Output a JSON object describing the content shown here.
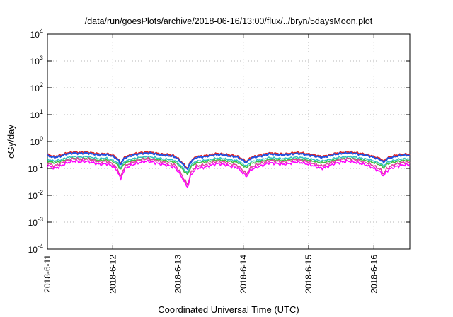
{
  "chart_data": {
    "type": "line",
    "title": "/data/run/goesPlots/archive/2018-06-16/13:00/flux/../bryn/5daysMoon.plot",
    "xlabel": "Coordinated Universal Time (UTC)",
    "ylabel": "cGy/day",
    "yscale": "log",
    "ylim": [
      0.0001,
      10000
    ],
    "xlim_days": [
      0,
      5.55
    ],
    "x_ticks": [
      {
        "label": "2018-6-11",
        "day": 0
      },
      {
        "label": "2018-6-12",
        "day": 1
      },
      {
        "label": "2018-6-13",
        "day": 2
      },
      {
        "label": "2018-6-14",
        "day": 3
      },
      {
        "label": "2018-6-15",
        "day": 4
      },
      {
        "label": "2018-6-16",
        "day": 5
      }
    ],
    "y_ticks": [
      {
        "base": "10",
        "exp": "-4",
        "value": 0.0001
      },
      {
        "base": "10",
        "exp": "-3",
        "value": 0.001
      },
      {
        "base": "10",
        "exp": "-2",
        "value": 0.01
      },
      {
        "base": "10",
        "exp": "-1",
        "value": 0.1
      },
      {
        "base": "10",
        "exp": "0",
        "value": 1
      },
      {
        "base": "10",
        "exp": "1",
        "value": 10
      },
      {
        "base": "10",
        "exp": "2",
        "value": 100
      },
      {
        "base": "10",
        "exp": "3",
        "value": 1000
      },
      {
        "base": "10",
        "exp": "4",
        "value": 10000
      }
    ],
    "grid": true,
    "legend": "none",
    "series": [
      {
        "color": "#e02020",
        "baseline": 0.33
      },
      {
        "color": "#2050e0",
        "baseline": 0.3
      },
      {
        "color": "#30c0c0",
        "baseline": 0.22
      },
      {
        "color": "#40c040",
        "baseline": 0.19
      },
      {
        "color": "#e040a0",
        "baseline": 0.16
      },
      {
        "color": "#ff00ff",
        "baseline": 0.13
      }
    ],
    "profile": {
      "x": [
        0.0,
        0.1,
        0.2,
        0.3,
        0.4,
        0.5,
        0.6,
        0.7,
        0.8,
        0.9,
        1.0,
        1.08,
        1.12,
        1.18,
        1.25,
        1.35,
        1.45,
        1.55,
        1.65,
        1.75,
        1.85,
        1.95,
        2.05,
        2.1,
        2.15,
        2.2,
        2.28,
        2.4,
        2.5,
        2.6,
        2.7,
        2.8,
        2.9,
        3.0,
        3.05,
        3.12,
        3.2,
        3.3,
        3.4,
        3.5,
        3.6,
        3.7,
        3.8,
        3.9,
        4.0,
        4.1,
        4.2,
        4.3,
        4.4,
        4.5,
        4.6,
        4.7,
        4.8,
        4.9,
        5.0,
        5.1,
        5.15,
        5.2,
        5.3,
        5.4,
        5.5,
        5.55
      ],
      "factor": [
        1.0,
        0.85,
        0.95,
        1.15,
        1.25,
        1.2,
        1.25,
        1.15,
        1.05,
        1.1,
        0.95,
        0.7,
        0.45,
        0.8,
        0.95,
        1.1,
        1.2,
        1.25,
        1.15,
        1.05,
        1.0,
        0.9,
        0.55,
        0.4,
        0.3,
        0.6,
        0.85,
        0.9,
        1.0,
        1.1,
        1.05,
        0.95,
        0.9,
        0.65,
        0.55,
        0.8,
        0.9,
        1.0,
        1.15,
        1.1,
        1.05,
        1.1,
        1.2,
        1.15,
        1.05,
        0.95,
        0.85,
        0.95,
        1.1,
        1.2,
        1.25,
        1.2,
        1.1,
        1.0,
        0.85,
        0.7,
        0.55,
        0.75,
        0.9,
        1.0,
        1.05,
        1.0
      ]
    }
  }
}
